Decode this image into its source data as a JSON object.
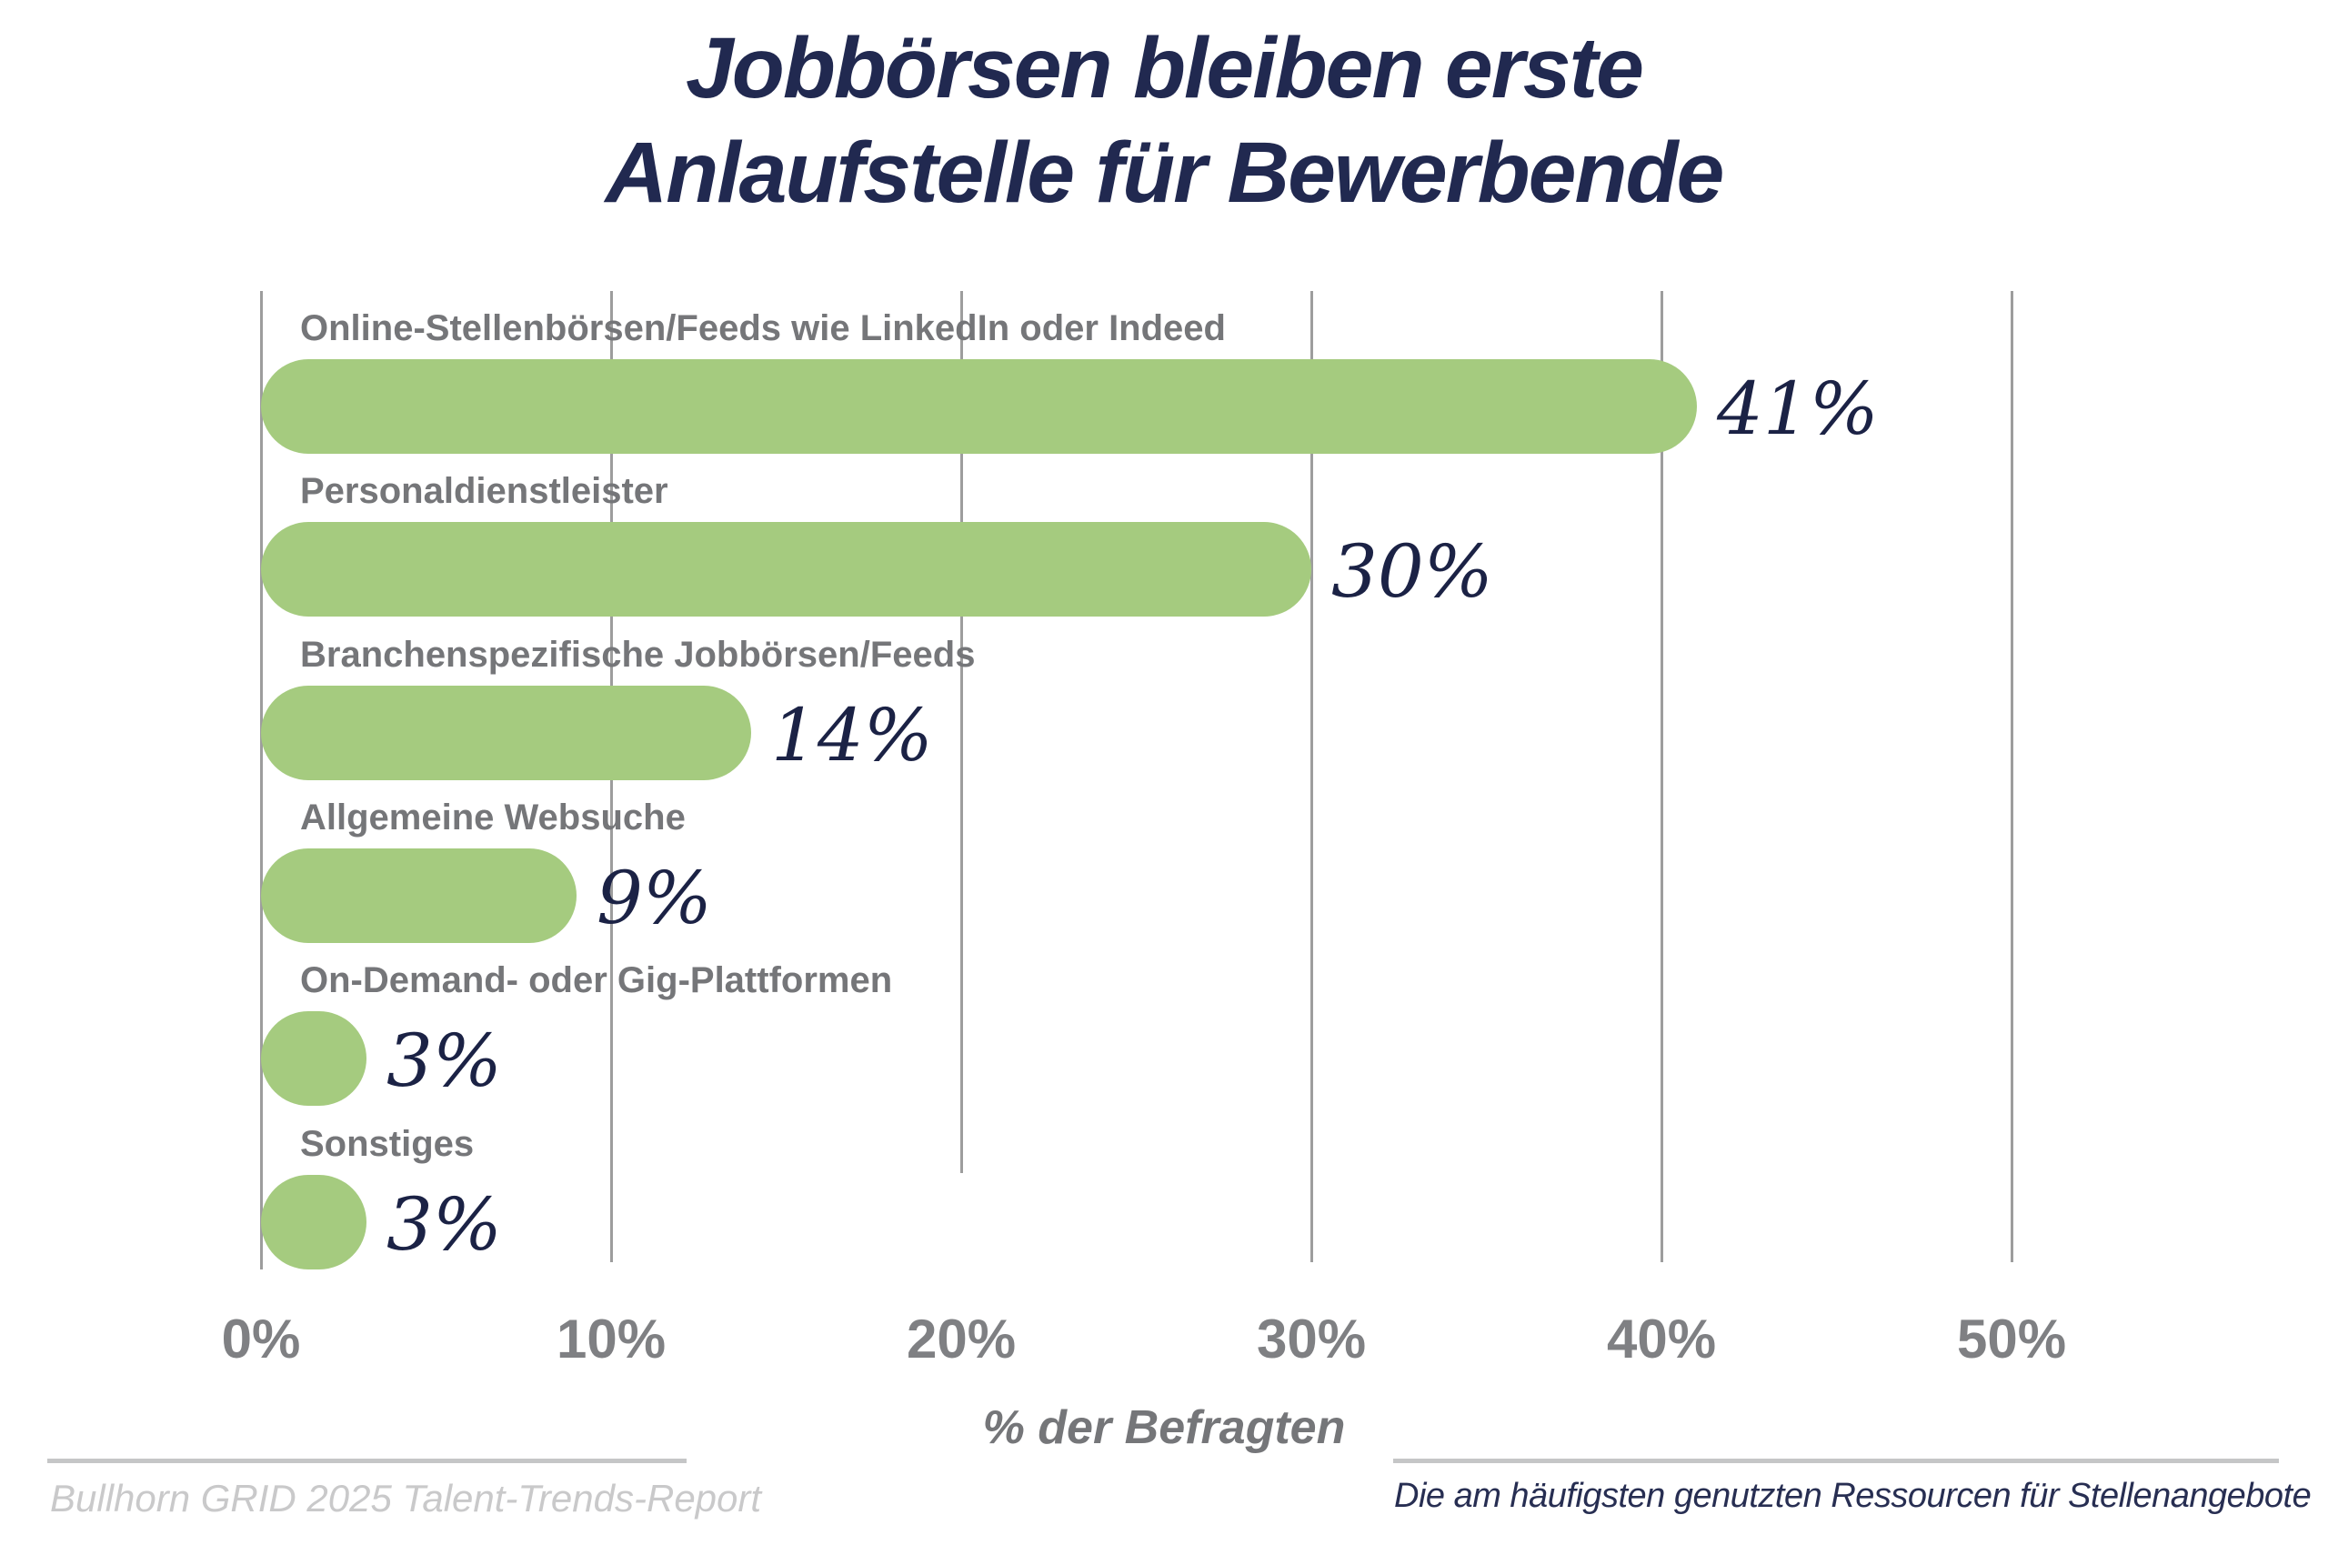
{
  "title": {
    "line1": "Jobbörsen bleiben erste",
    "line2": "Anlaufstelle für Bewerbende"
  },
  "chart_data": {
    "type": "bar",
    "orientation": "horizontal",
    "title": "Jobbörsen bleiben erste Anlaufstelle für Bewerbende",
    "categories": [
      "Online-Stellenbörsen/Feeds wie LinkedIn oder Indeed",
      "Personaldienstleister",
      "Branchenspezifische Jobbörsen/Feeds",
      "Allgemeine Websuche",
      "On-Demand- oder Gig-Plattformen",
      "Sonstiges"
    ],
    "values": [
      41,
      30,
      14,
      9,
      3,
      3
    ],
    "value_labels": [
      "41%",
      "30%",
      "14%",
      "9%",
      "3%",
      "3%"
    ],
    "xlabel": "% der Befragten",
    "ylabel": "",
    "xlim": [
      0,
      50
    ],
    "x_ticks": [
      "0%",
      "10%",
      "20%",
      "30%",
      "40%",
      "50%"
    ],
    "x_tick_values": [
      0,
      10,
      20,
      30,
      40,
      50
    ],
    "grid": true,
    "legend": false
  },
  "footer": {
    "source": "Bullhorn GRID 2025 Talent-Trends-Report",
    "caption": "Die am häufigsten genutzten Ressourcen für Stellenangebote"
  },
  "colors": {
    "bar_green": "#a5cb7f",
    "title_navy": "#212950",
    "value_navy": "#1b2245",
    "label_gray": "#757679",
    "tick_gray": "#7f8083",
    "gridline_gray": "#9d9d9d",
    "footer_light_gray": "#c9c9ca",
    "footer_navy": "#272e52"
  }
}
